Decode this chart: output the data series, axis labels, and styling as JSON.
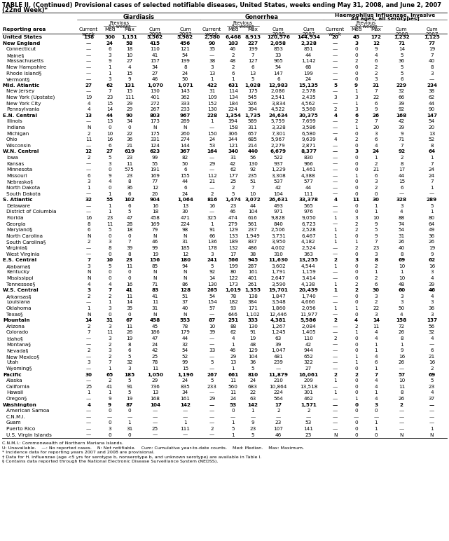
{
  "title1": "TABLE II. (Continued) Provisional cases of selected notifiable diseases, United States, weeks ending May 31, 2008, and June 2, 2007",
  "title2": "(22nd Week)*",
  "footnote_lines": [
    "C.N.M.I.: Commonwealth of Northern Mariana Islands.",
    "U: Unavailable.    —: No reported cases.    N: Not notifiable.    Cum: Cumulative year-to-date counts.    Med: Median.    Max: Maximum.",
    "* Incidence data for reporting years 2007 and 2008 are provisional.",
    "† Data for H. influenzae (age <5 yrs for serotype b, nonserotype b, and unknown serotype) are available in Table I.",
    "§ Contains data reported through the National Electronic Disease Surveillance System (NEDSS)."
  ],
  "rows": [
    [
      "United States",
      "138",
      "300",
      "1,151",
      "5,562",
      "5,982",
      "2,580",
      "6,468",
      "8,913",
      "120,576",
      "144,934",
      "20",
      "45",
      "172",
      "1,232",
      "1,125"
    ],
    [
      "New England",
      "—",
      "24",
      "58",
      "415",
      "456",
      "90",
      "103",
      "227",
      "2,058",
      "2,328",
      "—",
      "3",
      "12",
      "71",
      "77"
    ],
    [
      "Connecticut",
      "—",
      "6",
      "18",
      "110",
      "121",
      "35",
      "46",
      "199",
      "853",
      "851",
      "—",
      "0",
      "9",
      "14",
      "19"
    ],
    [
      "Maine§",
      "—",
      "3",
      "10",
      "41",
      "54",
      "—",
      "2",
      "7",
      "33",
      "44",
      "—",
      "0",
      "4",
      "5",
      "7"
    ],
    [
      "Massachusetts",
      "—",
      "9",
      "27",
      "157",
      "199",
      "38",
      "48",
      "127",
      "965",
      "1,142",
      "—",
      "2",
      "6",
      "36",
      "40"
    ],
    [
      "New Hampshire",
      "—",
      "1",
      "4",
      "34",
      "8",
      "3",
      "2",
      "6",
      "54",
      "68",
      "—",
      "0",
      "2",
      "5",
      "8"
    ],
    [
      "Rhode Island§",
      "—",
      "1",
      "15",
      "27",
      "24",
      "13",
      "6",
      "13",
      "147",
      "199",
      "—",
      "0",
      "2",
      "5",
      "3"
    ],
    [
      "Vermont§",
      "—",
      "3",
      "9",
      "46",
      "50",
      "1",
      "1",
      "5",
      "6",
      "24",
      "—",
      "0",
      "3",
      "6",
      "—"
    ],
    [
      "Mid. Atlantic",
      "27",
      "62",
      "131",
      "1,070",
      "1,071",
      "422",
      "631",
      "1,028",
      "12,983",
      "15,135",
      "5",
      "9",
      "31",
      "229",
      "234"
    ],
    [
      "New Jersey",
      "—",
      "7",
      "15",
      "130",
      "143",
      "31",
      "114",
      "175",
      "2,086",
      "2,578",
      "—",
      "1",
      "7",
      "32",
      "38"
    ],
    [
      "New York (Upstate)",
      "19",
      "23",
      "111",
      "401",
      "362",
      "109",
      "134",
      "545",
      "2,541",
      "2,435",
      "3",
      "3",
      "22",
      "66",
      "62"
    ],
    [
      "New York City",
      "4",
      "15",
      "29",
      "272",
      "333",
      "152",
      "184",
      "526",
      "3,834",
      "4,562",
      "—",
      "1",
      "6",
      "39",
      "44"
    ],
    [
      "Pennsylvania",
      "4",
      "14",
      "29",
      "267",
      "233",
      "130",
      "224",
      "394",
      "4,522",
      "5,560",
      "2",
      "3",
      "9",
      "92",
      "90"
    ],
    [
      "E.N. Central",
      "13",
      "44",
      "90",
      "803",
      "967",
      "228",
      "1,354",
      "1,735",
      "24,634",
      "30,375",
      "4",
      "6",
      "26",
      "168",
      "147"
    ],
    [
      "Illinois",
      "—",
      "13",
      "34",
      "173",
      "289",
      "1",
      "394",
      "589",
      "5,759",
      "7,699",
      "—",
      "2",
      "7",
      "42",
      "54"
    ],
    [
      "Indiana",
      "N",
      "0",
      "0",
      "N",
      "N",
      "—",
      "158",
      "311",
      "3,328",
      "3,586",
      "—",
      "1",
      "20",
      "39",
      "20"
    ],
    [
      "Michigan",
      "2",
      "10",
      "22",
      "175",
      "260",
      "150",
      "306",
      "657",
      "7,301",
      "6,580",
      "—",
      "0",
      "3",
      "9",
      "13"
    ],
    [
      "Ohio",
      "11",
      "16",
      "36",
      "331",
      "274",
      "24",
      "344",
      "685",
      "5,967",
      "9,639",
      "4",
      "2",
      "6",
      "71",
      "52"
    ],
    [
      "Wisconsin",
      "—",
      "6",
      "21",
      "124",
      "144",
      "53",
      "121",
      "214",
      "2,279",
      "2,871",
      "—",
      "0",
      "4",
      "7",
      "8"
    ],
    [
      "W.N. Central",
      "12",
      "27",
      "619",
      "623",
      "367",
      "164",
      "340",
      "440",
      "6,679",
      "8,377",
      "—",
      "3",
      "24",
      "92",
      "64"
    ],
    [
      "Iowa",
      "2",
      "5",
      "23",
      "99",
      "82",
      "—",
      "31",
      "56",
      "522",
      "830",
      "—",
      "0",
      "1",
      "2",
      "1"
    ],
    [
      "Kansas",
      "—",
      "3",
      "11",
      "55",
      "50",
      "29",
      "42",
      "130",
      "937",
      "966",
      "—",
      "0",
      "2",
      "8",
      "7"
    ],
    [
      "Minnesota",
      "—",
      "0",
      "575",
      "191",
      "6",
      "—",
      "62",
      "92",
      "1,229",
      "1,461",
      "—",
      "0",
      "21",
      "17",
      "24"
    ],
    [
      "Missouri",
      "6",
      "9",
      "23",
      "169",
      "155",
      "112",
      "177",
      "235",
      "3,308",
      "4,388",
      "—",
      "1",
      "6",
      "44",
      "24"
    ],
    [
      "Nebraska§",
      "3",
      "4",
      "8",
      "77",
      "44",
      "21",
      "25",
      "51",
      "537",
      "577",
      "—",
      "0",
      "3",
      "15",
      "7"
    ],
    [
      "North Dakota",
      "1",
      "0",
      "36",
      "12",
      "6",
      "—",
      "2",
      "7",
      "42",
      "44",
      "—",
      "0",
      "2",
      "6",
      "1"
    ],
    [
      "South Dakota",
      "—",
      "1",
      "6",
      "20",
      "24",
      "2",
      "5",
      "10",
      "104",
      "111",
      "—",
      "0",
      "0",
      "—",
      "—"
    ],
    [
      "S. Atlantic",
      "32",
      "55",
      "102",
      "904",
      "1,064",
      "816",
      "1,474",
      "3,072",
      "26,631",
      "33,378",
      "4",
      "11",
      "30",
      "328",
      "289"
    ],
    [
      "Delaware",
      "—",
      "1",
      "6",
      "16",
      "13",
      "16",
      "23",
      "44",
      "493",
      "565",
      "—",
      "0",
      "1",
      "3",
      "5"
    ],
    [
      "District of Columbia",
      "—",
      "1",
      "5",
      "18",
      "30",
      "—",
      "46",
      "104",
      "971",
      "976",
      "—",
      "0",
      "1",
      "4",
      "1"
    ],
    [
      "Florida",
      "16",
      "23",
      "47",
      "458",
      "471",
      "325",
      "474",
      "616",
      "9,828",
      "9,050",
      "1",
      "3",
      "10",
      "88",
      "80"
    ],
    [
      "Georgia",
      "8",
      "11",
      "28",
      "169",
      "224",
      "1",
      "279",
      "561",
      "840",
      "6,723",
      "—",
      "2",
      "9",
      "74",
      "64"
    ],
    [
      "Maryland§",
      "6",
      "5",
      "18",
      "79",
      "98",
      "91",
      "129",
      "237",
      "2,506",
      "2,528",
      "1",
      "2",
      "5",
      "54",
      "49"
    ],
    [
      "North Carolina",
      "N",
      "0",
      "0",
      "N",
      "N",
      "66",
      "133",
      "1,949",
      "3,731",
      "6,467",
      "1",
      "0",
      "9",
      "31",
      "36"
    ],
    [
      "South Carolina§",
      "2",
      "3",
      "7",
      "46",
      "31",
      "136",
      "189",
      "837",
      "3,950",
      "4,182",
      "1",
      "1",
      "7",
      "26",
      "26"
    ],
    [
      "Virginia§",
      "—",
      "8",
      "39",
      "99",
      "185",
      "178",
      "132",
      "486",
      "4,002",
      "2,524",
      "—",
      "2",
      "23",
      "40",
      "19"
    ],
    [
      "West Virginia",
      "—",
      "0",
      "8",
      "19",
      "12",
      "3",
      "17",
      "38",
      "310",
      "363",
      "—",
      "0",
      "3",
      "8",
      "9"
    ],
    [
      "E.S. Central",
      "7",
      "10",
      "23",
      "156",
      "180",
      "241",
      "566",
      "945",
      "11,630",
      "13,255",
      "2",
      "3",
      "8",
      "69",
      "62"
    ],
    [
      "Alabama§",
      "3",
      "5",
      "11",
      "85",
      "94",
      "5",
      "199",
      "287",
      "3,602",
      "4,544",
      "1",
      "0",
      "2",
      "10",
      "16"
    ],
    [
      "Kentucky",
      "N",
      "0",
      "0",
      "N",
      "N",
      "92",
      "80",
      "161",
      "1,791",
      "1,159",
      "—",
      "0",
      "1",
      "1",
      "3"
    ],
    [
      "Mississippi",
      "N",
      "0",
      "0",
      "N",
      "N",
      "14",
      "122",
      "401",
      "2,647",
      "3,414",
      "—",
      "0",
      "2",
      "10",
      "4"
    ],
    [
      "Tennessee§",
      "4",
      "4",
      "16",
      "71",
      "86",
      "130",
      "173",
      "261",
      "3,590",
      "4,138",
      "1",
      "2",
      "6",
      "48",
      "39"
    ],
    [
      "W.S. Central",
      "3",
      "7",
      "41",
      "83",
      "128",
      "265",
      "1,019",
      "1,355",
      "19,701",
      "20,439",
      "1",
      "2",
      "30",
      "60",
      "46"
    ],
    [
      "Arkansas§",
      "2",
      "2",
      "11",
      "41",
      "51",
      "54",
      "78",
      "138",
      "1,847",
      "1,740",
      "—",
      "0",
      "3",
      "3",
      "4"
    ],
    [
      "Louisiana",
      "—",
      "1",
      "14",
      "11",
      "37",
      "154",
      "182",
      "384",
      "3,548",
      "4,666",
      "—",
      "0",
      "2",
      "3",
      "3"
    ],
    [
      "Oklahoma",
      "1",
      "3",
      "35",
      "31",
      "40",
      "57",
      "93",
      "171",
      "1,860",
      "2,056",
      "1",
      "1",
      "22",
      "50",
      "36"
    ],
    [
      "Texas§",
      "N",
      "0",
      "0",
      "N",
      "N",
      "—",
      "646",
      "1,102",
      "12,446",
      "11,977",
      "—",
      "0",
      "3",
      "4",
      "3"
    ],
    [
      "Mountain",
      "14",
      "31",
      "67",
      "458",
      "553",
      "87",
      "251",
      "333",
      "4,381",
      "5,586",
      "2",
      "4",
      "14",
      "158",
      "137"
    ],
    [
      "Arizona",
      "2",
      "3",
      "11",
      "45",
      "78",
      "10",
      "88",
      "130",
      "1,267",
      "2,084",
      "—",
      "2",
      "11",
      "72",
      "56"
    ],
    [
      "Colorado",
      "7",
      "11",
      "26",
      "186",
      "179",
      "39",
      "62",
      "91",
      "1,245",
      "1,405",
      "—",
      "1",
      "4",
      "26",
      "32"
    ],
    [
      "Idaho§",
      "—",
      "3",
      "19",
      "47",
      "44",
      "—",
      "4",
      "19",
      "63",
      "110",
      "2",
      "0",
      "4",
      "8",
      "4"
    ],
    [
      "Montana§",
      "—",
      "2",
      "8",
      "24",
      "32",
      "—",
      "1",
      "48",
      "39",
      "42",
      "—",
      "0",
      "1",
      "1",
      "—"
    ],
    [
      "Nevada§",
      "2",
      "3",
      "6",
      "42",
      "54",
      "33",
      "46",
      "129",
      "1,047",
      "944",
      "—",
      "0",
      "1",
      "9",
      "6"
    ],
    [
      "New Mexico§",
      "—",
      "2",
      "5",
      "25",
      "52",
      "—",
      "29",
      "104",
      "481",
      "652",
      "—",
      "1",
      "4",
      "16",
      "21"
    ],
    [
      "Utah",
      "3",
      "7",
      "32",
      "78",
      "99",
      "5",
      "13",
      "36",
      "239",
      "322",
      "—",
      "1",
      "6",
      "26",
      "16"
    ],
    [
      "Wyoming§",
      "—",
      "1",
      "3",
      "11",
      "15",
      "—",
      "1",
      "5",
      "—",
      "27",
      "—",
      "0",
      "1",
      "—",
      "2"
    ],
    [
      "Pacific",
      "30",
      "65",
      "185",
      "1,050",
      "1,196",
      "267",
      "661",
      "810",
      "11,879",
      "16,061",
      "2",
      "2",
      "7",
      "57",
      "69"
    ],
    [
      "Alaska",
      "—",
      "2",
      "5",
      "29",
      "24",
      "5",
      "11",
      "24",
      "210",
      "209",
      "1",
      "0",
      "4",
      "10",
      "5"
    ],
    [
      "California",
      "25",
      "41",
      "91",
      "736",
      "835",
      "233",
      "560",
      "683",
      "10,864",
      "13,518",
      "—",
      "0",
      "4",
      "11",
      "23"
    ],
    [
      "Hawaii",
      "1",
      "1",
      "5",
      "13",
      "34",
      "—",
      "11",
      "22",
      "224",
      "301",
      "1",
      "0",
      "1",
      "8",
      "4"
    ],
    [
      "Oregon§",
      "—",
      "9",
      "19",
      "168",
      "161",
      "29",
      "24",
      "63",
      "564",
      "462",
      "—",
      "1",
      "4",
      "26",
      "37"
    ],
    [
      "Washington",
      "4",
      "9",
      "87",
      "104",
      "142",
      "—",
      "53",
      "142",
      "17",
      "1,571",
      "—",
      "0",
      "3",
      "2",
      "—"
    ],
    [
      "American Samoa",
      "—",
      "0",
      "0",
      "—",
      "—",
      "—",
      "0",
      "1",
      "2",
      "2",
      "—",
      "0",
      "0",
      "—",
      "—"
    ],
    [
      "C.N.M.I.",
      "—",
      "—",
      "—",
      "—",
      "—",
      "—",
      "—",
      "—",
      "—",
      "—",
      "—",
      "—",
      "—",
      "—",
      "—"
    ],
    [
      "Guam",
      "—",
      "0",
      "1",
      "—",
      "1",
      "—",
      "1",
      "9",
      "23",
      "53",
      "—",
      "0",
      "1",
      "—",
      "—"
    ],
    [
      "Puerto Rico",
      "—",
      "3",
      "31",
      "25",
      "111",
      "2",
      "5",
      "23",
      "107",
      "141",
      "—",
      "0",
      "1",
      "—",
      "1"
    ],
    [
      "U.S. Virgin Islands",
      "—",
      "0",
      "0",
      "—",
      "—",
      "—",
      "1",
      "5",
      "46",
      "23",
      "N",
      "0",
      "0",
      "N",
      "N"
    ]
  ],
  "bold_rows": [
    0,
    1,
    8,
    13,
    19,
    27,
    37,
    42,
    47,
    56,
    61
  ],
  "indent_rows": [
    2,
    3,
    4,
    5,
    6,
    7,
    9,
    10,
    11,
    12,
    14,
    15,
    16,
    17,
    18,
    20,
    21,
    22,
    23,
    24,
    25,
    26,
    28,
    29,
    30,
    31,
    32,
    33,
    34,
    35,
    36,
    38,
    39,
    40,
    41,
    43,
    44,
    45,
    46,
    48,
    49,
    50,
    51,
    52,
    53,
    54,
    55,
    57,
    58,
    59,
    60,
    62,
    63,
    64,
    65,
    66,
    67,
    68
  ],
  "bg_color": "#ffffff",
  "text_color": "#000000"
}
